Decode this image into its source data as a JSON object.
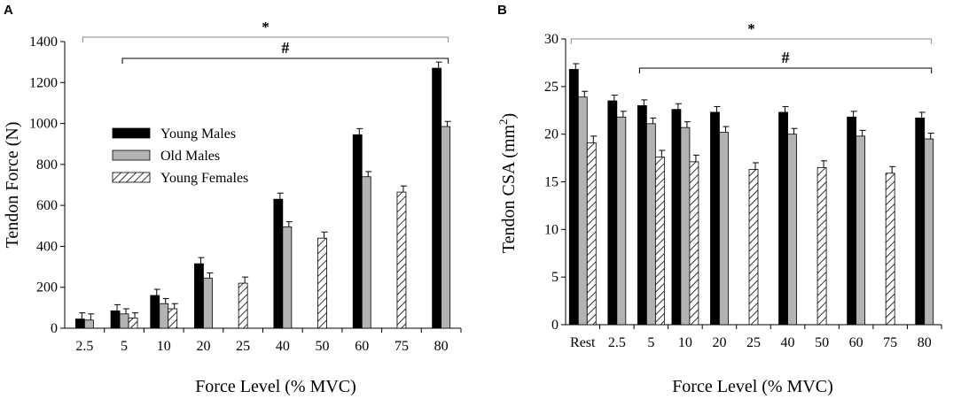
{
  "colors": {
    "young_males": "#000000",
    "old_males": "#b3b3b3",
    "young_females_pattern": "#000000",
    "axis": "#000000",
    "bracket": "#000000"
  },
  "chart_data": [
    {
      "panel": "A",
      "type": "bar",
      "ylabel": "Tendon Force (N)",
      "xlabel": "Force Level (% MVC)",
      "ylim": [
        0,
        1400
      ],
      "yticks": [
        0,
        200,
        400,
        600,
        800,
        1000,
        1200,
        1400
      ],
      "categories": [
        "2.5",
        "5",
        "10",
        "20",
        "25",
        "40",
        "50",
        "60",
        "75",
        "80"
      ],
      "legend": {
        "placement": "center-left",
        "entries": [
          "Young Males",
          "Old Males",
          "Young Females"
        ]
      },
      "series": [
        {
          "name": "Young Males",
          "values": [
            45,
            85,
            160,
            315,
            null,
            630,
            null,
            945,
            null,
            1270
          ],
          "errors": [
            30,
            30,
            30,
            30,
            null,
            30,
            null,
            30,
            null,
            30
          ]
        },
        {
          "name": "Old Males",
          "values": [
            40,
            70,
            120,
            245,
            null,
            495,
            null,
            740,
            null,
            985
          ],
          "errors": [
            30,
            25,
            25,
            25,
            null,
            25,
            null,
            25,
            null,
            25
          ]
        },
        {
          "name": "Young Females",
          "values": [
            null,
            50,
            95,
            null,
            220,
            null,
            440,
            null,
            665,
            null
          ],
          "errors": [
            null,
            25,
            25,
            null,
            30,
            null,
            30,
            null,
            30,
            null
          ]
        }
      ],
      "annotations": [
        {
          "symbol": "*",
          "from": "2.5",
          "to": "80"
        },
        {
          "symbol": "#",
          "from": "5",
          "to": "80"
        }
      ]
    },
    {
      "panel": "B",
      "type": "bar",
      "ylabel": "Tendon CSA (mm²)",
      "ylabel_main": "Tendon CSA (mm",
      "ylabel_sup": "2",
      "ylabel_end": ")",
      "xlabel": "Force Level (% MVC)",
      "ylim": [
        0,
        30
      ],
      "yticks": [
        0,
        5,
        10,
        15,
        20,
        25,
        30
      ],
      "categories": [
        "Rest",
        "2.5",
        "5",
        "10",
        "20",
        "25",
        "40",
        "50",
        "60",
        "75",
        "80"
      ],
      "series": [
        {
          "name": "Young Males",
          "values": [
            26.8,
            23.5,
            23.0,
            22.6,
            22.3,
            null,
            22.3,
            null,
            21.8,
            null,
            21.7
          ],
          "errors": [
            0.6,
            0.6,
            0.6,
            0.6,
            0.6,
            null,
            0.6,
            null,
            0.6,
            null,
            0.6
          ]
        },
        {
          "name": "Old Males",
          "values": [
            23.9,
            21.8,
            21.1,
            20.7,
            20.2,
            null,
            20.0,
            null,
            19.8,
            null,
            19.5
          ],
          "errors": [
            0.6,
            0.6,
            0.6,
            0.6,
            0.6,
            null,
            0.6,
            null,
            0.6,
            null,
            0.6
          ]
        },
        {
          "name": "Young Females",
          "values": [
            19.1,
            null,
            17.6,
            17.1,
            null,
            16.3,
            null,
            16.5,
            null,
            15.9,
            null
          ],
          "errors": [
            0.7,
            null,
            0.7,
            0.7,
            null,
            0.7,
            null,
            0.7,
            null,
            0.7,
            null
          ]
        }
      ],
      "annotations": [
        {
          "symbol": "*",
          "from": "Rest",
          "to": "80"
        },
        {
          "symbol": "#",
          "from": "5",
          "to": "80"
        }
      ]
    }
  ]
}
